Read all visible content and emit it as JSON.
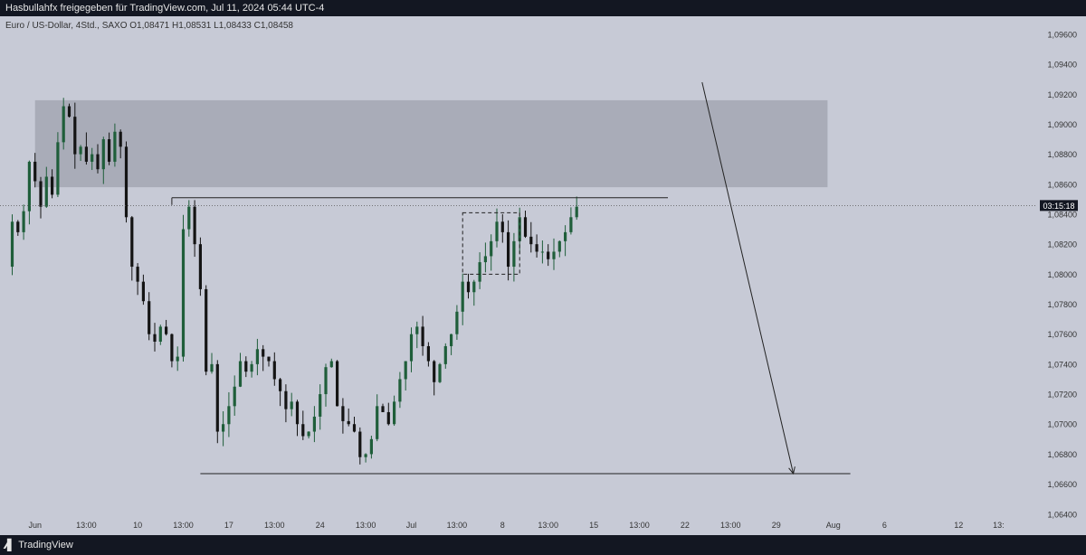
{
  "header": {
    "title": "Hasbullahfx freigegeben für TradingView.com, Jul 11, 2024 05:44 UTC-4"
  },
  "legend": {
    "symbol": "Euro / US-Dollar, 4Std., SAXO",
    "open": "O1,08471",
    "high": "H1,08531",
    "low": "L1,08433",
    "close": "C1,08458"
  },
  "footer": {
    "brand": "TradingView",
    "brand_icon": "tradingview-logo-icon"
  },
  "countdown": "03:15:18",
  "colors": {
    "background": "#c7cad6",
    "up": "#1f5e3a",
    "down": "#141414",
    "zone": "#a9acb8",
    "text": "#333333"
  },
  "chart_data": {
    "type": "candlestick",
    "symbol": "EURUSD",
    "timeframe": "4H",
    "ylim": [
      1.0626,
      1.0972
    ],
    "y_ticks": [
      "1,09600",
      "1,09400",
      "1,09200",
      "1,09000",
      "1,08800",
      "1,08600",
      "1,08400",
      "1,08200",
      "1,08000",
      "1,07800",
      "1,07600",
      "1,07400",
      "1,07200",
      "1,07000",
      "1,06800",
      "1,06600",
      "1,06400"
    ],
    "y_tick_values": [
      1.096,
      1.094,
      1.092,
      1.09,
      1.088,
      1.086,
      1.084,
      1.082,
      1.08,
      1.078,
      1.076,
      1.074,
      1.072,
      1.07,
      1.068,
      1.066,
      1.064
    ],
    "x_ticks": [
      {
        "label": "Jun",
        "bar": 5
      },
      {
        "label": "13:00",
        "bar": 14
      },
      {
        "label": "10",
        "bar": 23
      },
      {
        "label": "13:00",
        "bar": 31
      },
      {
        "label": "17",
        "bar": 39
      },
      {
        "label": "13:00",
        "bar": 47
      },
      {
        "label": "24",
        "bar": 55
      },
      {
        "label": "13:00",
        "bar": 63
      },
      {
        "label": "Jul",
        "bar": 71
      },
      {
        "label": "13:00",
        "bar": 79
      },
      {
        "label": "8",
        "bar": 87
      },
      {
        "label": "13:00",
        "bar": 95
      },
      {
        "label": "15",
        "bar": 103
      },
      {
        "label": "13:00",
        "bar": 111
      },
      {
        "label": "22",
        "bar": 119
      },
      {
        "label": "13:00",
        "bar": 127
      },
      {
        "label": "29",
        "bar": 135
      },
      {
        "label": "Aug",
        "bar": 145
      },
      {
        "label": "6",
        "bar": 154
      },
      {
        "label": "12",
        "bar": 167
      },
      {
        "label": "13:",
        "bar": 174
      }
    ],
    "current_price": 1.08458,
    "price_path": [
      [
        0,
        1.0805
      ],
      [
        1,
        1.0835
      ],
      [
        2,
        1.0828
      ],
      [
        3,
        1.0842
      ],
      [
        4,
        1.0875
      ],
      [
        5,
        1.0862
      ],
      [
        6,
        1.0845
      ],
      [
        7,
        1.0865
      ],
      [
        8,
        1.0853
      ],
      [
        9,
        1.0888
      ],
      [
        10,
        1.0912
      ],
      [
        11,
        1.0905
      ],
      [
        12,
        1.088
      ],
      [
        13,
        1.0885
      ],
      [
        14,
        1.0875
      ],
      [
        15,
        1.088
      ],
      [
        16,
        1.087
      ],
      [
        17,
        1.089
      ],
      [
        18,
        1.0875
      ],
      [
        19,
        1.0895
      ],
      [
        20,
        1.0885
      ],
      [
        21,
        1.0838
      ],
      [
        22,
        1.0805
      ],
      [
        23,
        1.0795
      ],
      [
        24,
        1.0782
      ],
      [
        25,
        1.076
      ],
      [
        26,
        1.0755
      ],
      [
        27,
        1.0765
      ],
      [
        28,
        1.076
      ],
      [
        29,
        1.0742
      ],
      [
        30,
        1.0745
      ],
      [
        31,
        1.083
      ],
      [
        32,
        1.0845
      ],
      [
        33,
        1.082
      ],
      [
        34,
        1.079
      ],
      [
        35,
        1.0735
      ],
      [
        36,
        1.074
      ],
      [
        37,
        1.0695
      ],
      [
        38,
        1.07
      ],
      [
        39,
        1.0712
      ],
      [
        40,
        1.0725
      ],
      [
        41,
        1.0742
      ],
      [
        42,
        1.0735
      ],
      [
        43,
        1.074
      ],
      [
        44,
        1.075
      ],
      [
        45,
        1.0745
      ],
      [
        46,
        1.0742
      ],
      [
        47,
        1.073
      ],
      [
        48,
        1.0722
      ],
      [
        49,
        1.071
      ],
      [
        50,
        1.0715
      ],
      [
        51,
        1.07
      ],
      [
        52,
        1.0692
      ],
      [
        53,
        1.0695
      ],
      [
        54,
        1.0705
      ],
      [
        55,
        1.072
      ],
      [
        56,
        1.0738
      ],
      [
        57,
        1.0742
      ],
      [
        58,
        1.0712
      ],
      [
        59,
        1.0702
      ],
      [
        60,
        1.07
      ],
      [
        61,
        1.0695
      ],
      [
        62,
        1.0678
      ],
      [
        63,
        1.068
      ],
      [
        64,
        1.069
      ],
      [
        65,
        1.0712
      ],
      [
        66,
        1.0708
      ],
      [
        67,
        1.07
      ],
      [
        68,
        1.0715
      ],
      [
        69,
        1.073
      ],
      [
        70,
        1.0742
      ],
      [
        71,
        1.076
      ],
      [
        72,
        1.0765
      ],
      [
        73,
        1.0752
      ],
      [
        74,
        1.0742
      ],
      [
        75,
        1.0728
      ],
      [
        76,
        1.074
      ],
      [
        77,
        1.0752
      ],
      [
        78,
        1.076
      ],
      [
        79,
        1.0775
      ],
      [
        80,
        1.0795
      ],
      [
        81,
        1.0788
      ],
      [
        82,
        1.0795
      ],
      [
        83,
        1.0808
      ],
      [
        84,
        1.0812
      ],
      [
        85,
        1.0822
      ],
      [
        86,
        1.0835
      ],
      [
        87,
        1.0828
      ],
      [
        88,
        1.0805
      ],
      [
        89,
        1.0822
      ],
      [
        90,
        1.0838
      ],
      [
        91,
        1.0825
      ],
      [
        92,
        1.082
      ],
      [
        93,
        1.0815
      ],
      [
        94,
        1.0815
      ],
      [
        95,
        1.081
      ],
      [
        96,
        1.0815
      ],
      [
        97,
        1.0822
      ],
      [
        98,
        1.0828
      ],
      [
        99,
        1.0838
      ],
      [
        100,
        1.0845
      ]
    ],
    "annotations": {
      "supply_zone": {
        "bar_from": 5,
        "bar_to": 144,
        "price_from": 1.0858,
        "price_to": 1.0916
      },
      "resistance_line": {
        "bar_from": 29,
        "bar_to": 116,
        "price": 1.0851
      },
      "support_line": {
        "bar_from": 34,
        "bar_to": 148,
        "price": 1.0667
      },
      "consolidation_box": {
        "bar_from": 80,
        "bar_to": 90,
        "price_from": 1.08,
        "price_to": 1.0841
      },
      "projection_arrow": {
        "from": {
          "bar": 122,
          "price": 1.0928
        },
        "to": {
          "bar": 138,
          "price": 1.0667
        }
      }
    }
  }
}
